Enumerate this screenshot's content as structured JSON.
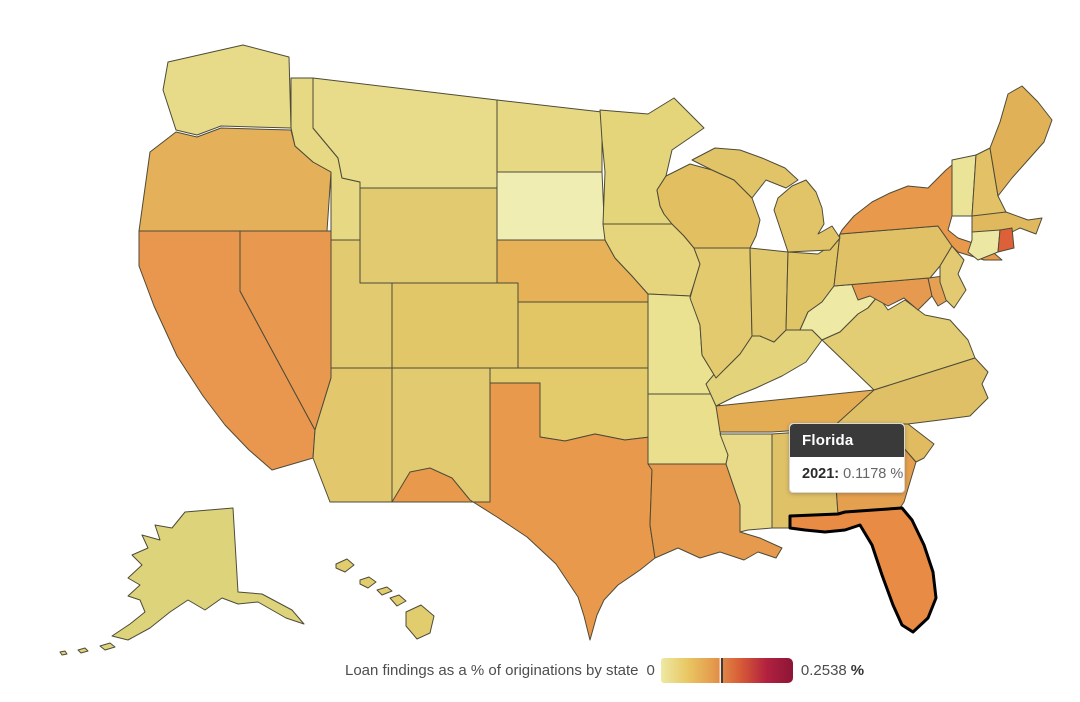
{
  "tooltip": {
    "state": "Florida",
    "year_label": "2021:",
    "value": "0.1178 %"
  },
  "legend": {
    "label": "Loan findings as a % of originations by state",
    "min_label": "0",
    "max_label": "0.2538",
    "unit_label": "%",
    "marker_position": 0.465,
    "gradient": [
      "#ede9a4",
      "#e9c763",
      "#e49a4c",
      "#d75c37",
      "#b2213f",
      "#8c1537"
    ]
  },
  "map": {
    "background": "#ffffff",
    "border_color": "#4e4b39",
    "highlight": {
      "id": "FL",
      "stroke": "#000000",
      "stroke_width": 3
    },
    "states": [
      {
        "id": "WA",
        "name": "Washington",
        "fill": "#e7db8a"
      },
      {
        "id": "OR",
        "name": "Oregon",
        "fill": "#e4b059"
      },
      {
        "id": "CA",
        "name": "California",
        "fill": "#e9974e"
      },
      {
        "id": "NV",
        "name": "Nevada",
        "fill": "#e8984f"
      },
      {
        "id": "ID",
        "name": "Idaho",
        "fill": "#e7d883"
      },
      {
        "id": "MT",
        "name": "Montana",
        "fill": "#e8dc8a"
      },
      {
        "id": "WY",
        "name": "Wyoming",
        "fill": "#e2ca70"
      },
      {
        "id": "UT",
        "name": "Utah",
        "fill": "#e2ca70"
      },
      {
        "id": "CO",
        "name": "Colorado",
        "fill": "#e2c768"
      },
      {
        "id": "AZ",
        "name": "Arizona",
        "fill": "#e2c76d"
      },
      {
        "id": "NM",
        "name": "New Mexico",
        "fill": "#e2ca70"
      },
      {
        "id": "ND",
        "name": "North Dakota",
        "fill": "#e7d984"
      },
      {
        "id": "SD",
        "name": "South Dakota",
        "fill": "#f0edb2"
      },
      {
        "id": "NE",
        "name": "Nebraska",
        "fill": "#e7b158"
      },
      {
        "id": "KS",
        "name": "Kansas",
        "fill": "#e2c565"
      },
      {
        "id": "OK",
        "name": "Oklahoma",
        "fill": "#e3cb6c"
      },
      {
        "id": "TX",
        "name": "Texas",
        "fill": "#e8994c"
      },
      {
        "id": "MN",
        "name": "Minnesota",
        "fill": "#e4d57b"
      },
      {
        "id": "IA",
        "name": "Iowa",
        "fill": "#e6d57c"
      },
      {
        "id": "WI",
        "name": "Wisconsin",
        "fill": "#e2c061"
      },
      {
        "id": "MO",
        "name": "Missouri",
        "fill": "#ebe291"
      },
      {
        "id": "AR",
        "name": "Arkansas",
        "fill": "#e9df8d"
      },
      {
        "id": "LA",
        "name": "Louisiana",
        "fill": "#e69a4d"
      },
      {
        "id": "MS",
        "name": "Mississippi",
        "fill": "#e8da89"
      },
      {
        "id": "AL",
        "name": "Alabama",
        "fill": "#dfc167"
      },
      {
        "id": "GA",
        "name": "Georgia",
        "fill": "#e5a04f"
      },
      {
        "id": "TN",
        "name": "Tennessee",
        "fill": "#e5ad53"
      },
      {
        "id": "KY",
        "name": "Kentucky",
        "fill": "#e3d37a"
      },
      {
        "id": "IL",
        "name": "Illinois",
        "fill": "#e4ca6e"
      },
      {
        "id": "IN",
        "name": "Indiana",
        "fill": "#e1c76c"
      },
      {
        "id": "OH",
        "name": "Ohio",
        "fill": "#e0c566"
      },
      {
        "id": "WV",
        "name": "West Virginia",
        "fill": "#eeeaa6"
      },
      {
        "id": "VA",
        "name": "Virginia",
        "fill": "#e2cc74"
      },
      {
        "id": "NC",
        "name": "North Carolina",
        "fill": "#dfc066"
      },
      {
        "id": "SC",
        "name": "South Carolina",
        "fill": "#e0bb60"
      },
      {
        "id": "MD",
        "name": "Maryland",
        "fill": "#e69a50"
      },
      {
        "id": "DE",
        "name": "Delaware",
        "fill": "#e6a053"
      },
      {
        "id": "PA",
        "name": "Pennsylvania",
        "fill": "#e1c166"
      },
      {
        "id": "NJ",
        "name": "New Jersey",
        "fill": "#e3ca72"
      },
      {
        "id": "NY",
        "name": "New York",
        "fill": "#e8994c"
      },
      {
        "id": "VT",
        "name": "Vermont",
        "fill": "#eae398"
      },
      {
        "id": "NH",
        "name": "New Hampshire",
        "fill": "#e2c167"
      },
      {
        "id": "ME",
        "name": "Maine",
        "fill": "#e0b156"
      },
      {
        "id": "MA",
        "name": "Massachusetts",
        "fill": "#e0b95e"
      },
      {
        "id": "CT",
        "name": "Connecticut",
        "fill": "#ece7a3"
      },
      {
        "id": "RI",
        "name": "Rhode Island",
        "fill": "#dd6038"
      },
      {
        "id": "MI",
        "name": "Michigan",
        "fill": "#e1c468"
      },
      {
        "id": "AK",
        "name": "Alaska",
        "fill": "#ddd37b"
      },
      {
        "id": "HI",
        "name": "Hawaii",
        "fill": "#e2cd6e"
      },
      {
        "id": "FL",
        "name": "Florida",
        "fill": "#e78b45"
      }
    ]
  },
  "chart_data": {
    "type": "choropleth",
    "title": "Loan findings as a % of originations by state",
    "colorbar": {
      "min": 0,
      "max": 0.2538,
      "unit": "%",
      "scale": [
        "#ede9a4",
        "#e9c763",
        "#e49a4c",
        "#d75c37",
        "#b2213f",
        "#8c1537"
      ]
    },
    "highlighted_datum": {
      "state": "Florida",
      "year": "2021",
      "value_pct": 0.1178
    }
  }
}
